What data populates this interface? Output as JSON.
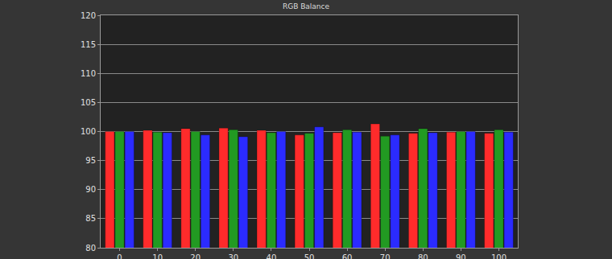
{
  "chart_data": {
    "type": "bar",
    "title": "RGB Balance",
    "categories": [
      "0",
      "10",
      "20",
      "30",
      "40",
      "50",
      "60",
      "70",
      "80",
      "90",
      "100"
    ],
    "series": [
      {
        "color": "#ff2b2b",
        "values": [
          100.0,
          100.2,
          100.5,
          100.6,
          100.2,
          99.4,
          99.8,
          101.3,
          99.7,
          99.9,
          99.7
        ]
      },
      {
        "color": "#229a22",
        "values": [
          100.0,
          99.9,
          100.0,
          100.3,
          99.8,
          99.7,
          100.3,
          99.2,
          100.5,
          100.0,
          100.3
        ]
      },
      {
        "color": "#2b2bff",
        "values": [
          100.0,
          99.8,
          99.4,
          99.1,
          100.0,
          100.8,
          99.9,
          99.4,
          99.8,
          100.0,
          99.9
        ]
      }
    ],
    "ylim": [
      80,
      120
    ],
    "yticks": [
      80,
      85,
      90,
      95,
      100,
      105,
      110,
      115,
      120
    ],
    "grid": true
  }
}
